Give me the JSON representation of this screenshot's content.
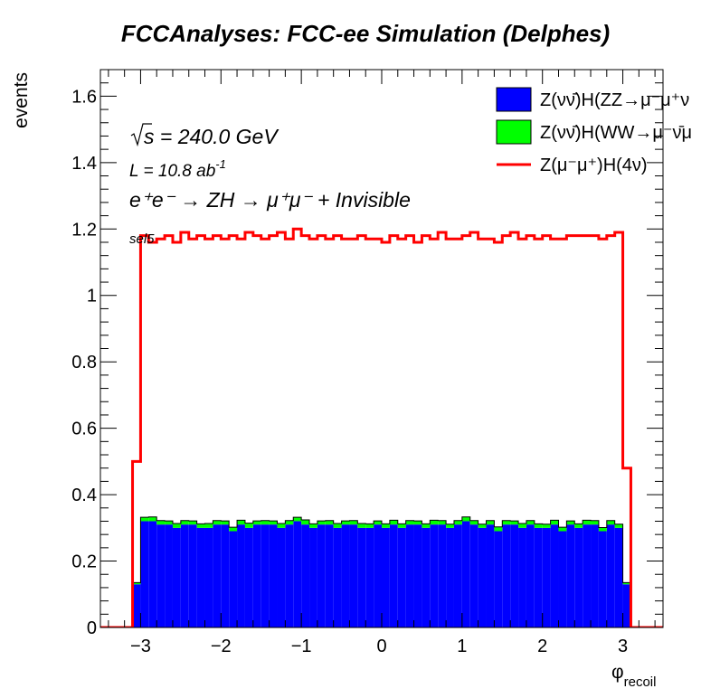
{
  "chart_data": {
    "type": "histogram",
    "title": "FCCAnalyses: FCC-ee Simulation (Delphes)",
    "xlabel": "φ",
    "xlabel_sub": "recoil",
    "ylabel": "events",
    "xlim": [
      -3.5,
      3.5
    ],
    "ylim": [
      0,
      1.68
    ],
    "x_ticks": [
      -3,
      -2,
      -1,
      0,
      1,
      2,
      3
    ],
    "x_tick_labels": [
      "−3",
      "−2",
      "−1",
      "0",
      "1",
      "2",
      "3"
    ],
    "y_ticks": [
      0,
      0.2,
      0.4,
      0.6,
      0.8,
      1,
      1.2,
      1.4,
      1.6
    ],
    "y_tick_labels": [
      "0",
      "0.2",
      "0.4",
      "0.6",
      "0.8",
      "1",
      "1.2",
      "1.4",
      "1.6"
    ],
    "bin_edges_from": -3.5,
    "bin_width": 0.1,
    "annotations": {
      "sqrt_s_value": " = 240.0 GeV",
      "lumi_label": "L = 10.8 ab",
      "lumi_sup": "-1",
      "process": "e⁺e⁻ → ZH → μ⁺μ⁻ + Invisible",
      "selection": "sel5"
    },
    "series": [
      {
        "name": "Z(νν̄)H(ZZ→μ⁻μ⁺ν",
        "style": "stacked-fill",
        "color": "#0000ff",
        "values": [
          0,
          0,
          0,
          0,
          0.13,
          0.32,
          0.32,
          0.31,
          0.31,
          0.3,
          0.31,
          0.31,
          0.3,
          0.3,
          0.31,
          0.31,
          0.29,
          0.31,
          0.3,
          0.31,
          0.31,
          0.31,
          0.3,
          0.31,
          0.32,
          0.31,
          0.3,
          0.31,
          0.31,
          0.3,
          0.31,
          0.31,
          0.3,
          0.3,
          0.31,
          0.3,
          0.31,
          0.3,
          0.31,
          0.31,
          0.3,
          0.31,
          0.31,
          0.3,
          0.31,
          0.32,
          0.31,
          0.3,
          0.31,
          0.29,
          0.31,
          0.31,
          0.3,
          0.31,
          0.3,
          0.3,
          0.31,
          0.29,
          0.31,
          0.3,
          0.31,
          0.31,
          0.29,
          0.31,
          0.3,
          0.13,
          0,
          0,
          0,
          0
        ]
      },
      {
        "name": "Z(νν̄)H(WW→μ⁻ν̄μ",
        "style": "stacked-fill",
        "color": "#00ff00",
        "values": [
          0,
          0,
          0,
          0,
          0.005,
          0.012,
          0.013,
          0.012,
          0.011,
          0.013,
          0.012,
          0.011,
          0.012,
          0.013,
          0.012,
          0.011,
          0.012,
          0.013,
          0.014,
          0.011,
          0.012,
          0.011,
          0.013,
          0.012,
          0.012,
          0.014,
          0.012,
          0.011,
          0.012,
          0.013,
          0.011,
          0.012,
          0.013,
          0.012,
          0.011,
          0.012,
          0.013,
          0.012,
          0.012,
          0.011,
          0.012,
          0.013,
          0.012,
          0.011,
          0.012,
          0.013,
          0.012,
          0.011,
          0.012,
          0.013,
          0.012,
          0.011,
          0.013,
          0.012,
          0.012,
          0.011,
          0.013,
          0.012,
          0.011,
          0.012,
          0.013,
          0.012,
          0.011,
          0.012,
          0.011,
          0.005,
          0,
          0,
          0,
          0
        ]
      },
      {
        "name": "Z(μ⁻μ⁺)H(4ν)",
        "style": "line",
        "color": "#ff0000",
        "values": [
          0,
          0,
          0,
          0,
          0.5,
          1.18,
          1.16,
          1.17,
          1.18,
          1.16,
          1.19,
          1.17,
          1.18,
          1.17,
          1.18,
          1.17,
          1.18,
          1.17,
          1.19,
          1.18,
          1.17,
          1.18,
          1.19,
          1.17,
          1.2,
          1.18,
          1.17,
          1.18,
          1.17,
          1.18,
          1.17,
          1.17,
          1.18,
          1.17,
          1.17,
          1.16,
          1.18,
          1.17,
          1.18,
          1.16,
          1.18,
          1.17,
          1.19,
          1.17,
          1.17,
          1.18,
          1.19,
          1.17,
          1.17,
          1.16,
          1.18,
          1.19,
          1.17,
          1.18,
          1.17,
          1.18,
          1.17,
          1.17,
          1.18,
          1.18,
          1.18,
          1.18,
          1.17,
          1.18,
          1.19,
          0.48,
          0,
          0,
          0,
          0
        ]
      }
    ],
    "legend": {
      "position": "top-right"
    }
  }
}
